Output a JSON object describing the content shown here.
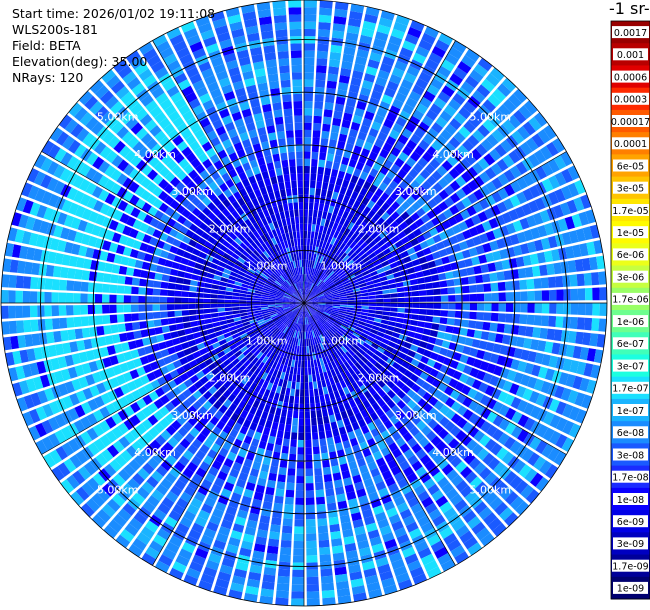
{
  "header": {
    "start_time": "Start time: 2026/01/02 19:11:08",
    "instrument": "WLS200s-181",
    "field": "Field: BETA",
    "elevation": "Elevation(deg): 35.00",
    "nrays": "NRays: 120",
    "units_fragment": "-1 sr-"
  },
  "chart_data": {
    "type": "heatmap",
    "projection": "polar-ppi",
    "field": "BETA",
    "elevation_deg": 35.0,
    "n_rays": 120,
    "range_rings_km": [
      1,
      2,
      3,
      4,
      5
    ],
    "range_labels": [
      "1.00km",
      "2.00km",
      "3.00km",
      "4.00km",
      "5.00km"
    ],
    "max_range_km": 5.75,
    "radials_deg": [
      0,
      30,
      60,
      90,
      120,
      150,
      180,
      210,
      240,
      270,
      300,
      330
    ],
    "grid": true,
    "colorbar": {
      "position": "right",
      "ticks": [
        "0.0017",
        "0.001",
        "0.0006",
        "0.0003",
        "0.00017",
        "0.0001",
        "6e-05",
        "3e-05",
        "1.7e-05",
        "1e-05",
        "6e-06",
        "3e-06",
        "1.7e-06",
        "1e-06",
        "6e-07",
        "3e-07",
        "1.7e-07",
        "1e-07",
        "6e-08",
        "3e-08",
        "1.7e-08",
        "1e-08",
        "6e-09",
        "3e-09",
        "1.7e-09",
        "1e-09"
      ],
      "colors": [
        "#990000",
        "#b80000",
        "#e00000",
        "#ff2a00",
        "#ff5a00",
        "#ff7f00",
        "#ffa300",
        "#ffc400",
        "#ffe600",
        "#fffb00",
        "#ecff1a",
        "#c6ff40",
        "#99ff66",
        "#6dff8f",
        "#40ffb9",
        "#1cffe0",
        "#1ae0ff",
        "#1ab4ff",
        "#1a8cff",
        "#1a5aff",
        "#1a2cff",
        "#0a00ff",
        "#0000e6",
        "#0000c0",
        "#000099",
        "#000070"
      ]
    },
    "dominant_value_range": [
      "3e-09",
      "1e-07"
    ]
  }
}
